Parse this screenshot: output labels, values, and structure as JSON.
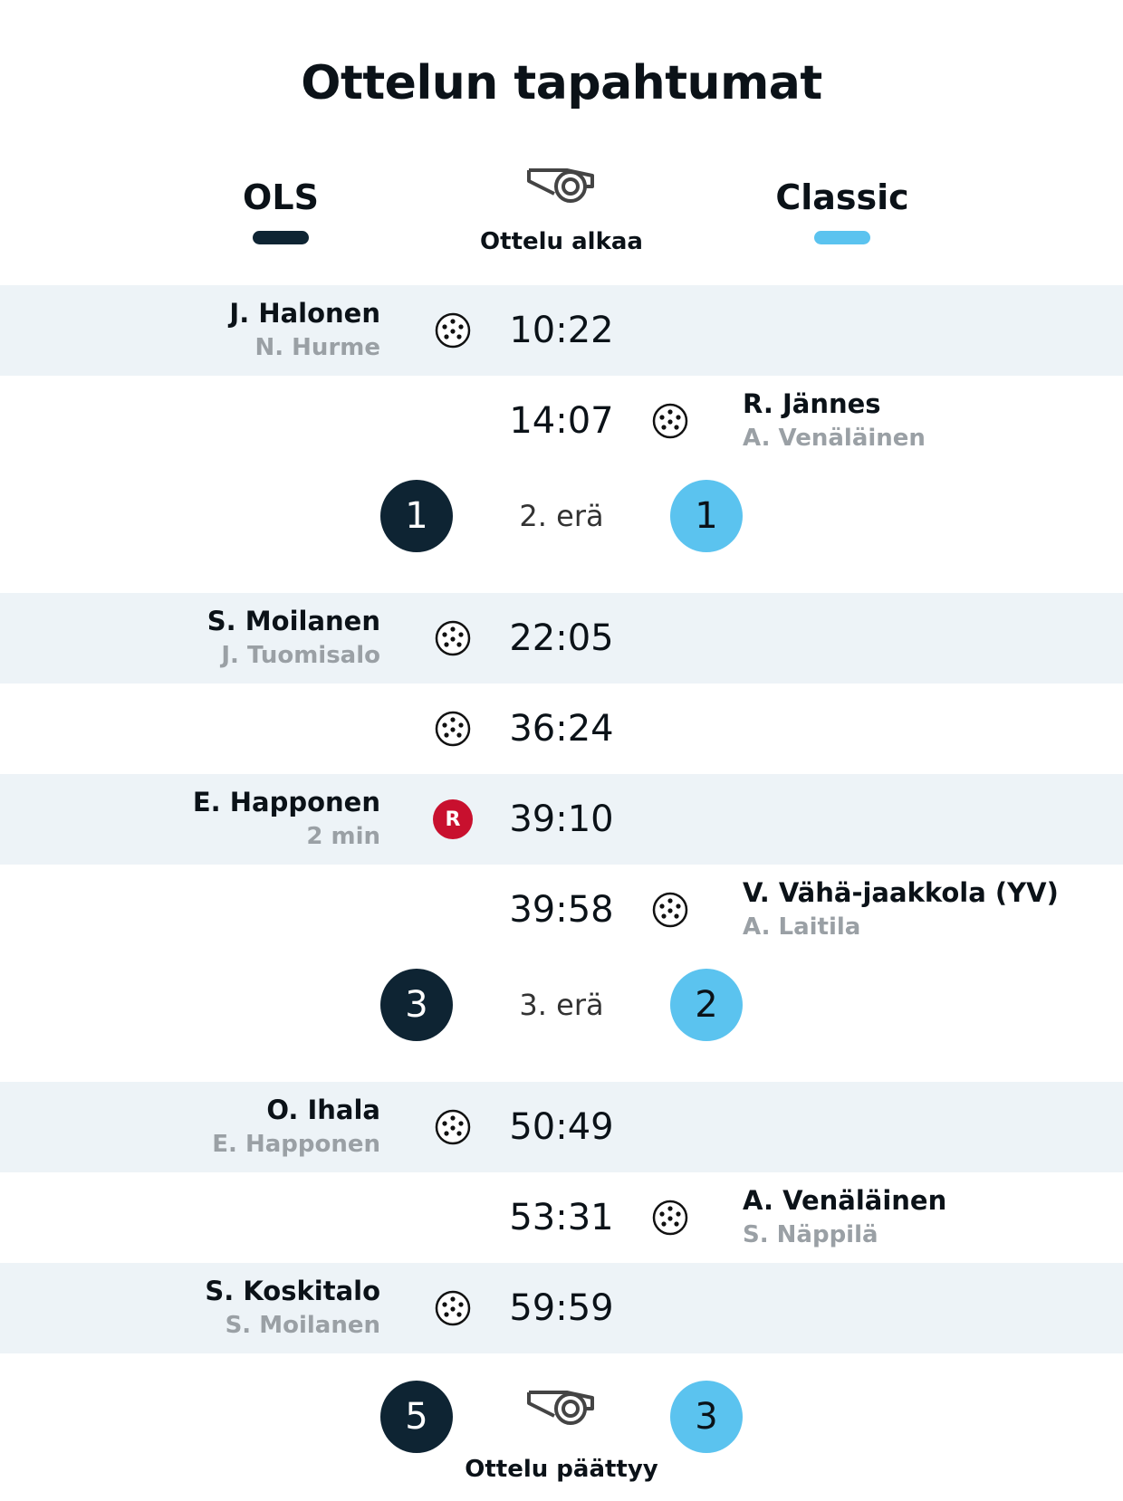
{
  "title": "Ottelun tapahtumat",
  "teams": {
    "home": {
      "name": "OLS",
      "color": "#0e2433"
    },
    "away": {
      "name": "Classic",
      "color": "#5bc3ef"
    }
  },
  "start_label": "Ottelu alkaa",
  "end_label": "Ottelu päättyy",
  "events": [
    {
      "time": "10:22",
      "side": "home",
      "type": "goal",
      "icon": "floorball-icon",
      "player": "J. Halonen",
      "sub": "N. Hurme"
    },
    {
      "time": "14:07",
      "side": "away",
      "type": "goal",
      "icon": "floorball-icon",
      "player": "R. Jännes",
      "sub": "A. Venäläinen"
    },
    {
      "period_break": true,
      "label": "2. erä",
      "home_score": "1",
      "away_score": "1"
    },
    {
      "time": "22:05",
      "side": "home",
      "type": "goal",
      "icon": "floorball-icon",
      "player": "S. Moilanen",
      "sub": "J. Tuomisalo"
    },
    {
      "time": "36:24",
      "side": "home",
      "type": "goal",
      "icon": "floorball-icon",
      "player": "",
      "sub": ""
    },
    {
      "time": "39:10",
      "side": "home",
      "type": "penalty",
      "icon": "penalty-badge",
      "badge": "R",
      "player": "E. Happonen",
      "sub": "2 min"
    },
    {
      "time": "39:58",
      "side": "away",
      "type": "goal",
      "icon": "floorball-icon",
      "player": "V. Vähä-jaakkola (YV)",
      "sub": "A. Laitila"
    },
    {
      "period_break": true,
      "label": "3. erä",
      "home_score": "3",
      "away_score": "2"
    },
    {
      "time": "50:49",
      "side": "home",
      "type": "goal",
      "icon": "floorball-icon",
      "player": "O. Ihala",
      "sub": "E. Happonen"
    },
    {
      "time": "53:31",
      "side": "away",
      "type": "goal",
      "icon": "floorball-icon",
      "player": "A. Venäläinen",
      "sub": "S. Näppilä"
    },
    {
      "time": "59:59",
      "side": "home",
      "type": "goal",
      "icon": "floorball-icon",
      "player": "S. Koskitalo",
      "sub": "S. Moilanen"
    }
  ],
  "final": {
    "home_score": "5",
    "away_score": "3"
  }
}
